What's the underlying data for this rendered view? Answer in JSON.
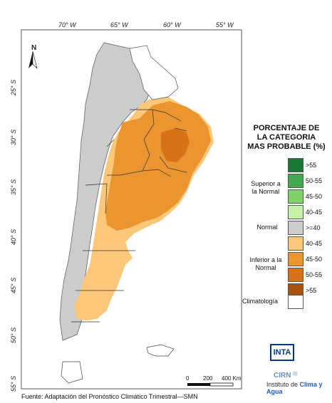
{
  "map": {
    "lon_ticks": [
      "70° W",
      "65° W",
      "60° W",
      "55° W"
    ],
    "lat_ticks": [
      "25° S",
      "30° S",
      "35° S",
      "40° S",
      "45° S",
      "50° S",
      "55° S"
    ],
    "north_label": "N",
    "scale": {
      "labels": [
        "0",
        "200",
        "400 Km"
      ]
    }
  },
  "legend": {
    "title_lines": [
      "PORCENTAJE DE",
      "LA CATEGORIA",
      "MAS PROBABLE (%)"
    ],
    "items": [
      {
        "value": ">55",
        "color": "#1a7a35"
      },
      {
        "value": "50-55",
        "color": "#43a94f"
      },
      {
        "value": "45-50",
        "color": "#7ed168"
      },
      {
        "value": "40-45",
        "color": "#c6efa8"
      },
      {
        "value": ">=40",
        "color": "#cccccc"
      },
      {
        "value": "40-45",
        "color": "#fcc779"
      },
      {
        "value": "45-50",
        "color": "#eb9530"
      },
      {
        "value": "50-55",
        "color": "#d8721a"
      },
      {
        "value": ">55",
        "color": "#a8520e"
      },
      {
        "value": "",
        "color": "#ffffff"
      }
    ],
    "categories": {
      "superior": "Superior a la Normal",
      "normal": "Normal",
      "inferior": "Inferior a la Normal",
      "climatologia": "Climatología"
    }
  },
  "branding": {
    "inta": "INTA",
    "cirn": "CIRN",
    "institute_prefix": "Instituto de ",
    "institute_highlight": "Clima y Agua"
  },
  "footer": "Fuente: Adaptación del Pronóstico Climático Trimestral—SMN"
}
